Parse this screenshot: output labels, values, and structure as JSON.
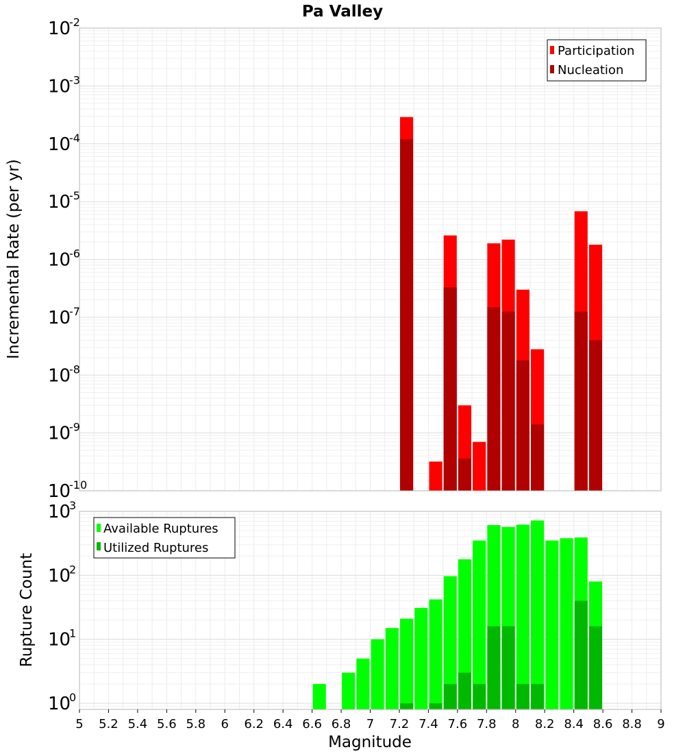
{
  "chart_data": [
    {
      "type": "bar",
      "title": "Pa Valley",
      "xlabel": "Magnitude",
      "ylabel": "Incremental Rate (per yr)",
      "yscale": "log",
      "xlim": [
        5,
        9
      ],
      "ylim": [
        1e-10,
        0.01
      ],
      "grid": true,
      "legend_position": "top-right",
      "bar_width": 0.09,
      "series": [
        {
          "name": "Participation",
          "color": "#ff0000",
          "x": [
            7.25,
            7.45,
            7.55,
            7.65,
            7.75,
            7.85,
            7.95,
            8.05,
            8.15,
            8.45,
            8.55
          ],
          "values": [
            0.00029,
            3.2e-10,
            2.6e-06,
            3e-09,
            7e-10,
            1.9e-06,
            2.2e-06,
            3e-07,
            2.8e-08,
            6.8e-06,
            1.8e-06
          ]
        },
        {
          "name": "Nucleation",
          "color": "#b00000",
          "x": [
            7.25,
            7.55,
            7.65,
            7.85,
            7.95,
            8.05,
            8.15,
            8.45,
            8.55
          ],
          "values": [
            0.00012,
            3.3e-07,
            3.6e-10,
            1.5e-07,
            1.25e-07,
            1.8e-08,
            1.4e-09,
            1.25e-07,
            4e-08
          ]
        }
      ]
    },
    {
      "type": "bar",
      "xlabel": "Magnitude",
      "ylabel": "Rupture Count",
      "yscale": "log",
      "xlim": [
        5,
        9
      ],
      "ylim": [
        0.8,
        1000
      ],
      "grid": true,
      "legend_position": "top-left",
      "bar_width": 0.09,
      "series": [
        {
          "name": "Available Ruptures",
          "color": "#00ff00",
          "x": [
            6.65,
            6.85,
            6.95,
            7.05,
            7.15,
            7.25,
            7.35,
            7.45,
            7.55,
            7.65,
            7.75,
            7.85,
            7.95,
            8.05,
            8.15,
            8.25,
            8.35,
            8.45,
            8.55
          ],
          "values": [
            2,
            3,
            5,
            10,
            15,
            21,
            31,
            42,
            97,
            178,
            350,
            610,
            570,
            620,
            720,
            350,
            380,
            390,
            80
          ]
        },
        {
          "name": "Utilized Ruptures",
          "color": "#00b800",
          "x": [
            7.25,
            7.45,
            7.55,
            7.65,
            7.75,
            7.85,
            7.95,
            8.05,
            8.15,
            8.45,
            8.55
          ],
          "values": [
            1,
            1,
            2,
            3,
            2,
            16,
            16,
            2,
            2,
            40,
            16
          ]
        }
      ]
    }
  ],
  "x_ticks": [
    "5",
    "5.2",
    "5.4",
    "5.6",
    "5.8",
    "6",
    "6.2",
    "6.4",
    "6.6",
    "6.8",
    "7",
    "7.2",
    "7.4",
    "7.6",
    "7.8",
    "8",
    "8.2",
    "8.4",
    "8.6",
    "8.8",
    "9"
  ],
  "top_y_ticks": [
    {
      "base": "10",
      "exp": "-10",
      "value": 1e-10
    },
    {
      "base": "10",
      "exp": "-9",
      "value": 1e-09
    },
    {
      "base": "10",
      "exp": "-8",
      "value": 1e-08
    },
    {
      "base": "10",
      "exp": "-7",
      "value": 1e-07
    },
    {
      "base": "10",
      "exp": "-6",
      "value": 1e-06
    },
    {
      "base": "10",
      "exp": "-5",
      "value": 1e-05
    },
    {
      "base": "10",
      "exp": "-4",
      "value": 0.0001
    },
    {
      "base": "10",
      "exp": "-3",
      "value": 0.001
    },
    {
      "base": "10",
      "exp": "-2",
      "value": 0.01
    }
  ],
  "bottom_y_ticks": [
    {
      "base": "10",
      "exp": "0",
      "value": 1
    },
    {
      "base": "10",
      "exp": "1",
      "value": 10
    },
    {
      "base": "10",
      "exp": "2",
      "value": 100
    },
    {
      "base": "10",
      "exp": "3",
      "value": 1000
    }
  ]
}
